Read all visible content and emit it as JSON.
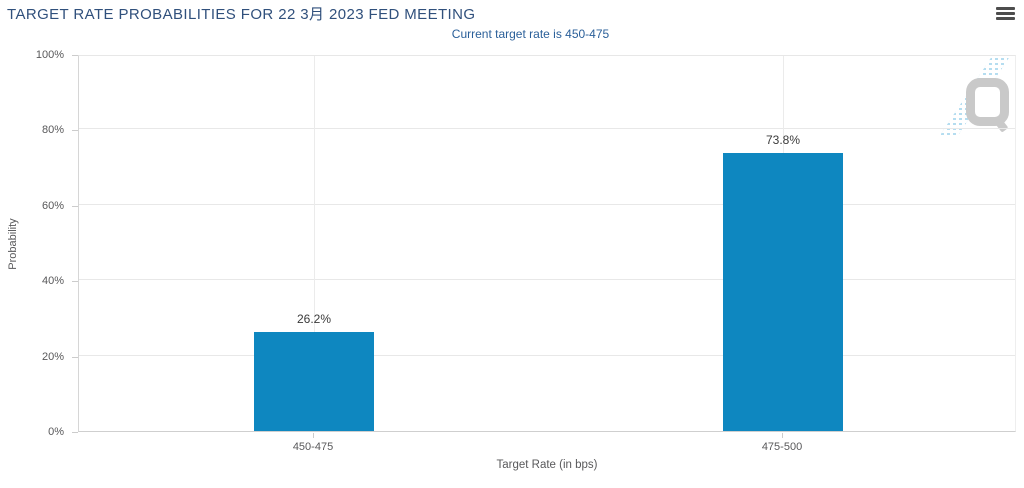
{
  "header": {
    "menu_icon": "hamburger-icon"
  },
  "watermark": {
    "letter": "Q"
  },
  "chart_data": {
    "type": "bar",
    "title": "TARGET RATE PROBABILITIES FOR 22 3月 2023 FED MEETING",
    "subtitle": "Current target rate is 450-475",
    "xlabel": "Target Rate (in bps)",
    "ylabel": "Probability",
    "categories": [
      "450-475",
      "475-500"
    ],
    "values": [
      26.2,
      73.8
    ],
    "value_labels": [
      "26.2%",
      "73.8%"
    ],
    "ylim": [
      0,
      100
    ],
    "ytick_values": [
      0,
      20,
      40,
      60,
      80,
      100
    ],
    "ytick_labels": [
      "0%",
      "20%",
      "40%",
      "60%",
      "80%",
      "100%"
    ],
    "grid": true,
    "legend": "none",
    "bar_color": "#0e87c0"
  },
  "colors": {
    "title": "#30507c",
    "subtitle": "#2a5f99",
    "axis_text": "#58585a",
    "value_label": "#3a3a3a",
    "bar": "#0e87c0",
    "gridline": "#e8e8e8",
    "axis_line": "#cccccc",
    "watermark_gray": "#c9c9c9",
    "watermark_blue": "#b5ddf0"
  }
}
